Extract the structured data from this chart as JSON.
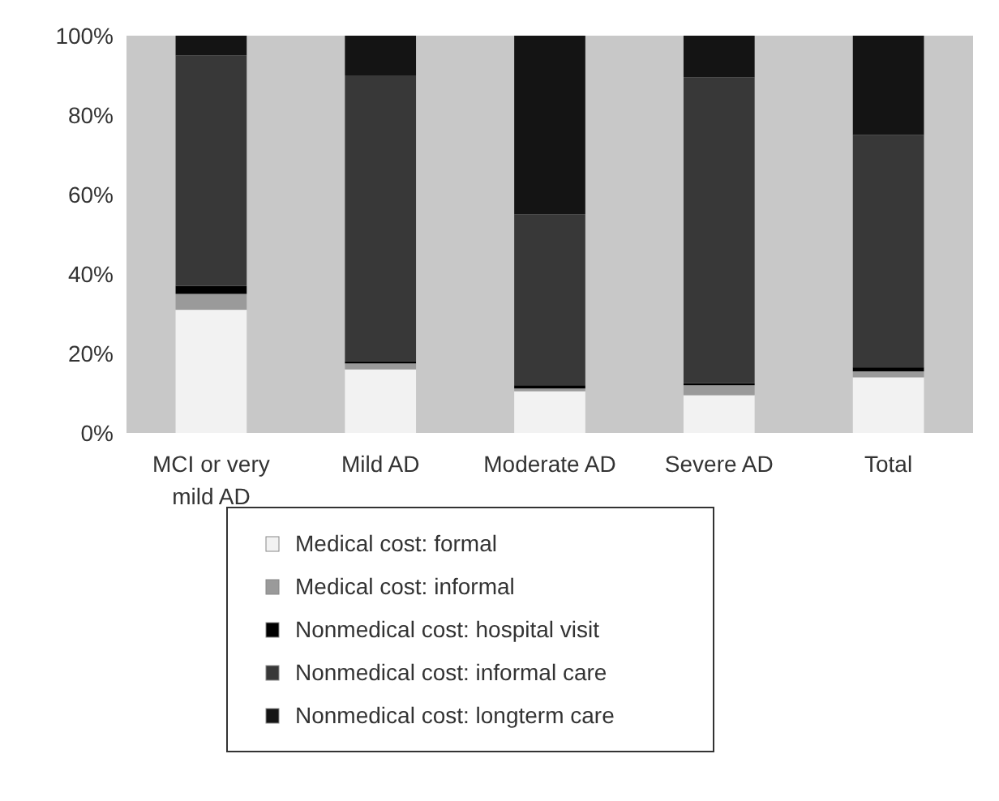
{
  "chart_data": {
    "type": "bar",
    "stacked": true,
    "categories": [
      "MCI or very mild AD",
      "Mild AD",
      "Moderate AD",
      "Severe AD",
      "Total"
    ],
    "series": [
      {
        "name": "Medical cost: formal",
        "color": "#f2f2f2",
        "values": [
          31,
          16,
          10.5,
          9.5,
          14
        ]
      },
      {
        "name": "Medical cost: informal",
        "color": "#9a9a9a",
        "values": [
          4,
          1.5,
          0.7,
          2.5,
          1.5
        ]
      },
      {
        "name": "Nonmedical cost: hospital visit",
        "color": "#000000",
        "values": [
          2,
          0.5,
          0.8,
          0.5,
          1
        ]
      },
      {
        "name": "Nonmedical cost: informal care",
        "color": "#383838",
        "values": [
          58,
          72,
          43,
          77,
          58.5
        ]
      },
      {
        "name": "Nonmedical cost: longterm care",
        "color": "#141414",
        "values": [
          5,
          10,
          45,
          10.5,
          25
        ]
      }
    ],
    "ylim": [
      0,
      100
    ],
    "yticks": [
      {
        "value": 0,
        "label": "0%"
      },
      {
        "value": 20,
        "label": "20%"
      },
      {
        "value": 40,
        "label": "40%"
      },
      {
        "value": 60,
        "label": "60%"
      },
      {
        "value": 80,
        "label": "80%"
      },
      {
        "value": 100,
        "label": "100%"
      }
    ],
    "grid": false,
    "legend": "bottom"
  }
}
